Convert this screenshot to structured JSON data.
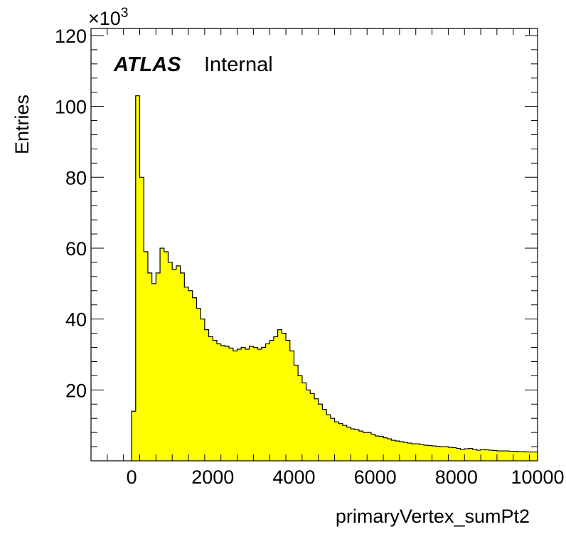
{
  "chart_data": {
    "type": "bar",
    "style": "histogram",
    "xlabel": "primaryVertex_sumPt2",
    "ylabel": "Entries",
    "y_multiplier": "×10",
    "y_multiplier_exponent": "3",
    "xlim": [
      -1000,
      10000
    ],
    "ylim": [
      0,
      122
    ],
    "xticks": [
      0,
      2000,
      4000,
      6000,
      8000,
      10000
    ],
    "yticks": [
      20,
      40,
      60,
      80,
      100,
      120
    ],
    "fill_color": "#ffff00",
    "line_color": "#000000",
    "bin_width": 100,
    "bin_start": 0,
    "values": [
      14,
      103,
      80,
      59,
      53,
      50,
      53,
      60,
      59,
      56,
      54,
      55,
      53,
      49,
      48,
      46,
      43,
      40,
      37,
      35,
      34,
      33,
      32.5,
      32.3,
      31.8,
      31,
      31.5,
      32,
      31.5,
      32.3,
      32,
      31.5,
      32,
      33,
      34,
      35,
      37,
      36,
      34,
      31,
      27,
      24,
      22,
      20,
      19,
      17.5,
      16,
      14.5,
      13,
      12,
      11,
      10.5,
      10,
      9.5,
      9,
      8.8,
      8.4,
      8,
      8,
      7.5,
      7,
      6.9,
      6.5,
      6.2,
      5.8,
      5.6,
      5.4,
      5.2,
      5,
      4.8,
      4.8,
      4.6,
      4.4,
      4.3,
      4.2,
      4.1,
      4,
      4,
      3.8,
      3.7,
      3.5,
      3.2,
      3.4,
      3.5,
      3.2,
      3,
      3.2,
      3.1,
      3,
      2.9,
      2.8,
      2.8,
      2.8,
      2.7,
      2.7,
      2.6,
      2.6,
      2.5,
      2.5,
      2.5
    ],
    "annotations": [
      {
        "text": "ATLAS",
        "style": "bold-italic"
      },
      {
        "text": "Internal",
        "style": "normal"
      }
    ]
  }
}
